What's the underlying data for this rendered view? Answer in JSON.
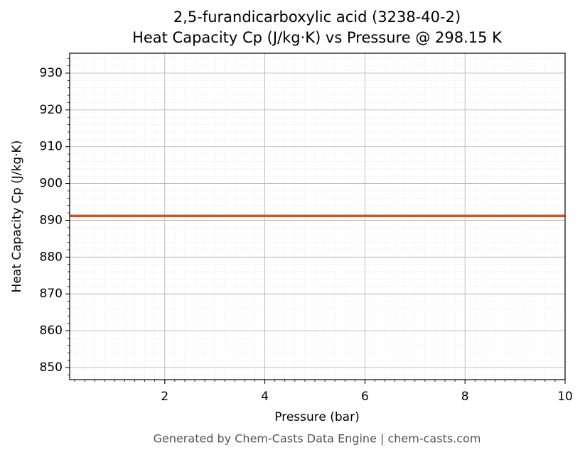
{
  "chart_data": {
    "type": "line",
    "title": "2,5-furandicarboxylic acid (3238-40-2)",
    "subtitle": "Heat Capacity Cp (J/kg·K) vs Pressure @ 298.15 K",
    "x_label": "Pressure (bar)",
    "y_label": "Heat Capacity Cp (J/kg·K)",
    "footer": "Generated by Chem-Casts Data Engine | chem-casts.com",
    "x": [
      0.1,
      10
    ],
    "series": [
      {
        "name": "Cp",
        "color": "#c8552b",
        "values": [
          891.2,
          891.2
        ]
      }
    ],
    "xlim": [
      0.1,
      10
    ],
    "xticks": [
      2,
      4,
      6,
      8,
      10
    ],
    "ylim": [
      846.7,
      935.4
    ],
    "yticks": [
      850,
      860,
      870,
      880,
      890,
      900,
      910,
      920,
      930
    ],
    "grid": true,
    "minor_grid": true
  }
}
